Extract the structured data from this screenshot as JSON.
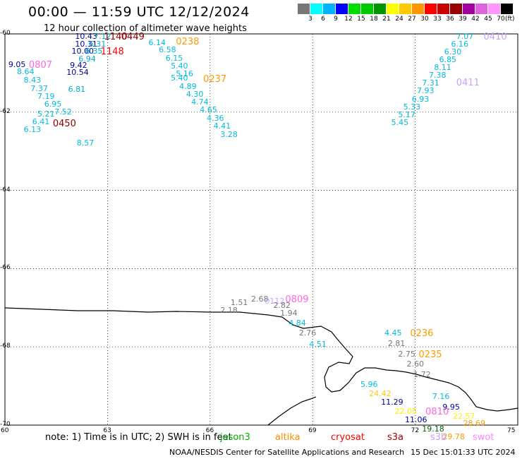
{
  "header": {
    "title": "00:00 — 11:59 UTC 12/12/2024",
    "subtitle": "12 hour collection of altimeter wave heights"
  },
  "legend": {
    "unit": "(ft)",
    "colors": [
      "#777777",
      "#00ffff",
      "#00b4ff",
      "#0000ff",
      "#00dc00",
      "#00c800",
      "#009600",
      "#ffff00",
      "#ffc800",
      "#ff9600",
      "#ff0000",
      "#c80000",
      "#960000",
      "#a000a0",
      "#dc64dc",
      "#ff96ff",
      "#000000"
    ],
    "labels": [
      "3",
      "6",
      "9",
      "12",
      "15",
      "18",
      "21",
      "24",
      "27",
      "30",
      "33",
      "36",
      "39",
      "42",
      "45",
      "70"
    ]
  },
  "axes": {
    "lon_ticks": [
      "60",
      "63",
      "66",
      "69",
      "72",
      "75"
    ],
    "lat_ticks": [
      "-60",
      "-62",
      "-64",
      "-66",
      "-68",
      "-70"
    ],
    "lon_range": [
      60,
      75
    ],
    "lat_range": [
      -60,
      -70
    ]
  },
  "footer": {
    "note": "note: 1) Time is in UTC; 2) SWH is in feet",
    "satellites": [
      {
        "name": "jason3",
        "color": "#00aa00"
      },
      {
        "name": "altika",
        "color": "#ff8c00"
      },
      {
        "name": "cryosat",
        "color": "#ff0000"
      },
      {
        "name": "s3a",
        "color": "#aa0000"
      },
      {
        "name": "s3b",
        "color": "#c8a0ff"
      },
      {
        "name": "swot",
        "color": "#ff88ff"
      }
    ],
    "credit": "NOAA/NESDIS Center for Satellite Applications and Research",
    "timestamp": "15 Dec 15:01:33 UTC 2024"
  },
  "observations": [
    {
      "t": "0449",
      "lon": 63.4,
      "lat": -60.07,
      "c": "#8b0000",
      "tag": true
    },
    {
      "t": "1140",
      "lon": 62.9,
      "lat": -60.07,
      "c": "#aa0000",
      "tag": true
    },
    {
      "t": "1148",
      "lon": 62.8,
      "lat": -60.45,
      "c": "#ff0000",
      "tag": true
    },
    {
      "t": "10.43",
      "lon": 62.05,
      "lat": -60.07,
      "c": "#000099"
    },
    {
      "t": "7.12",
      "lon": 62.6,
      "lat": -60.07,
      "c": "#00aacc"
    },
    {
      "t": "10.31",
      "lon": 62.05,
      "lat": -60.27,
      "c": "#000099"
    },
    {
      "t": "6.31",
      "lon": 62.45,
      "lat": -60.27,
      "c": "#00aacc"
    },
    {
      "t": "10.00",
      "lon": 61.95,
      "lat": -60.45,
      "c": "#000099"
    },
    {
      "t": "6.35",
      "lon": 62.35,
      "lat": -60.45,
      "c": "#00aacc"
    },
    {
      "t": "6.94",
      "lon": 62.15,
      "lat": -60.65,
      "c": "#00aacc"
    },
    {
      "t": "9.42",
      "lon": 61.9,
      "lat": -60.82,
      "c": "#000099"
    },
    {
      "t": "10.54",
      "lon": 61.8,
      "lat": -60.99,
      "c": "#000099"
    },
    {
      "t": "6.81",
      "lon": 61.85,
      "lat": -61.43,
      "c": "#00aacc"
    },
    {
      "t": "0807",
      "lon": 60.7,
      "lat": -60.8,
      "c": "#ff66dd",
      "tag": true
    },
    {
      "t": "9.05",
      "lon": 60.1,
      "lat": -60.8,
      "c": "#000099"
    },
    {
      "t": "8.64",
      "lon": 60.35,
      "lat": -60.98,
      "c": "#00bbdd"
    },
    {
      "t": "8.43",
      "lon": 60.55,
      "lat": -61.2,
      "c": "#00bbdd"
    },
    {
      "t": "7.37",
      "lon": 60.75,
      "lat": -61.4,
      "c": "#00bbdd"
    },
    {
      "t": "7.19",
      "lon": 60.95,
      "lat": -61.6,
      "c": "#00bbdd"
    },
    {
      "t": "6.95",
      "lon": 61.15,
      "lat": -61.8,
      "c": "#00bbdd"
    },
    {
      "t": "7.52",
      "lon": 61.45,
      "lat": -62.0,
      "c": "#00bbdd"
    },
    {
      "t": "5.21",
      "lon": 60.95,
      "lat": -62.05,
      "c": "#00bbdd"
    },
    {
      "t": "6.41",
      "lon": 60.8,
      "lat": -62.25,
      "c": "#00bbdd"
    },
    {
      "t": "6.13",
      "lon": 60.55,
      "lat": -62.45,
      "c": "#00bbdd"
    },
    {
      "t": "0450",
      "lon": 61.4,
      "lat": -62.3,
      "c": "#8b0000",
      "tag": true
    },
    {
      "t": "8.57",
      "lon": 62.1,
      "lat": -62.8,
      "c": "#00bbdd"
    },
    {
      "t": "6.14",
      "lon": 64.2,
      "lat": -60.23,
      "c": "#00bbdd"
    },
    {
      "t": "0238",
      "lon": 65.0,
      "lat": -60.2,
      "c": "#ff9900",
      "tag": true
    },
    {
      "t": "6.58",
      "lon": 64.5,
      "lat": -60.42,
      "c": "#00bbdd"
    },
    {
      "t": "6.15",
      "lon": 64.7,
      "lat": -60.63,
      "c": "#00bbdd"
    },
    {
      "t": "5.40",
      "lon": 64.85,
      "lat": -60.83,
      "c": "#00bbdd"
    },
    {
      "t": "5.16",
      "lon": 65.0,
      "lat": -61.03,
      "c": "#00bbdd"
    },
    {
      "t": "5.40",
      "lon": 64.85,
      "lat": -61.13,
      "c": "#00bbdd"
    },
    {
      "t": "0237",
      "lon": 65.8,
      "lat": -61.15,
      "c": "#ff9900",
      "tag": true
    },
    {
      "t": "4.89",
      "lon": 65.1,
      "lat": -61.35,
      "c": "#00bbdd"
    },
    {
      "t": "4.30",
      "lon": 65.3,
      "lat": -61.55,
      "c": "#00bbdd"
    },
    {
      "t": "4.74",
      "lon": 65.45,
      "lat": -61.75,
      "c": "#00bbdd"
    },
    {
      "t": "4.65",
      "lon": 65.7,
      "lat": -61.95,
      "c": "#00bbdd"
    },
    {
      "t": "4.36",
      "lon": 65.9,
      "lat": -62.16,
      "c": "#00bbdd"
    },
    {
      "t": "4.41",
      "lon": 66.1,
      "lat": -62.37,
      "c": "#00bbdd"
    },
    {
      "t": "3.28",
      "lon": 66.3,
      "lat": -62.58,
      "c": "#00bbdd"
    },
    {
      "t": "7.07",
      "lon": 73.2,
      "lat": -60.07,
      "c": "#00bbdd"
    },
    {
      "t": "0410",
      "lon": 74.0,
      "lat": -60.07,
      "c": "#c8a0ff",
      "tag": true
    },
    {
      "t": "6.16",
      "lon": 73.05,
      "lat": -60.27,
      "c": "#00bbdd"
    },
    {
      "t": "6.30",
      "lon": 72.85,
      "lat": -60.47,
      "c": "#00bbdd"
    },
    {
      "t": "6.85",
      "lon": 72.7,
      "lat": -60.67,
      "c": "#00bbdd"
    },
    {
      "t": "8.11",
      "lon": 72.55,
      "lat": -60.87,
      "c": "#00bbdd"
    },
    {
      "t": "7.38",
      "lon": 72.4,
      "lat": -61.07,
      "c": "#00bbdd"
    },
    {
      "t": "7.31",
      "lon": 72.2,
      "lat": -61.27,
      "c": "#00bbdd"
    },
    {
      "t": "0411",
      "lon": 73.2,
      "lat": -61.25,
      "c": "#c8a0ff",
      "tag": true
    },
    {
      "t": "7.93",
      "lon": 72.05,
      "lat": -61.47,
      "c": "#00bbdd"
    },
    {
      "t": "6.93",
      "lon": 71.9,
      "lat": -61.67,
      "c": "#00bbdd"
    },
    {
      "t": "5.33",
      "lon": 71.65,
      "lat": -61.87,
      "c": "#00bbdd"
    },
    {
      "t": "5.17",
      "lon": 71.5,
      "lat": -62.07,
      "c": "#00bbdd"
    },
    {
      "t": "5.45",
      "lon": 71.3,
      "lat": -62.28,
      "c": "#00bbdd"
    },
    {
      "t": "2.68",
      "lon": 67.2,
      "lat": -66.78,
      "c": "#777777"
    },
    {
      "t": "1.51",
      "lon": 66.6,
      "lat": -66.88,
      "c": "#777777"
    },
    {
      "t": "0809",
      "lon": 68.2,
      "lat": -66.78,
      "c": "#ff66dd",
      "tag": true
    },
    {
      "t": "0112",
      "lon": 67.6,
      "lat": -66.85,
      "c": "#c8a0ff"
    },
    {
      "t": "2.82",
      "lon": 67.85,
      "lat": -66.95,
      "c": "#777777"
    },
    {
      "t": "2.18",
      "lon": 66.3,
      "lat": -67.08,
      "c": "#777777"
    },
    {
      "t": "1.94",
      "lon": 68.05,
      "lat": -67.15,
      "c": "#777777"
    },
    {
      "t": "4.84",
      "lon": 68.3,
      "lat": -67.4,
      "c": "#00bbdd"
    },
    {
      "t": "2.76",
      "lon": 68.6,
      "lat": -67.65,
      "c": "#777777"
    },
    {
      "t": "4.51",
      "lon": 68.9,
      "lat": -67.95,
      "c": "#00bbdd"
    },
    {
      "t": "4.45",
      "lon": 71.1,
      "lat": -67.65,
      "c": "#00bbdd"
    },
    {
      "t": "0236",
      "lon": 71.85,
      "lat": -67.65,
      "c": "#ff9900",
      "tag": true
    },
    {
      "t": "2.81",
      "lon": 71.2,
      "lat": -67.93,
      "c": "#777777"
    },
    {
      "t": "2.75",
      "lon": 71.5,
      "lat": -68.2,
      "c": "#777777"
    },
    {
      "t": "0235",
      "lon": 72.1,
      "lat": -68.2,
      "c": "#ff9900",
      "tag": true
    },
    {
      "t": "2.60",
      "lon": 71.75,
      "lat": -68.45,
      "c": "#777777"
    },
    {
      "t": "1.72",
      "lon": 71.95,
      "lat": -68.72,
      "c": "#777777"
    },
    {
      "t": "5.96",
      "lon": 70.4,
      "lat": -68.98,
      "c": "#00bbdd"
    },
    {
      "t": "24.42",
      "lon": 70.65,
      "lat": -69.2,
      "c": "#ffcc00"
    },
    {
      "t": "7.16",
      "lon": 72.5,
      "lat": -69.27,
      "c": "#00bbdd"
    },
    {
      "t": "11.29",
      "lon": 71.0,
      "lat": -69.43,
      "c": "#000099"
    },
    {
      "t": "9.95",
      "lon": 72.8,
      "lat": -69.55,
      "c": "#000099"
    },
    {
      "t": "22.05",
      "lon": 71.4,
      "lat": -69.65,
      "c": "#ffee00"
    },
    {
      "t": "0810",
      "lon": 72.3,
      "lat": -69.65,
      "c": "#ff66dd",
      "tag": true
    },
    {
      "t": "22.57",
      "lon": 73.1,
      "lat": -69.78,
      "c": "#ffee00"
    },
    {
      "t": "11.06",
      "lon": 71.7,
      "lat": -69.87,
      "c": "#000099"
    },
    {
      "t": "28.69",
      "lon": 73.4,
      "lat": -69.97,
      "c": "#ff9900"
    },
    {
      "t": "19.18",
      "lon": 72.2,
      "lat": -70.1,
      "c": "#006600"
    },
    {
      "t": "29.78",
      "lon": 72.8,
      "lat": -70.3,
      "c": "#ff9900"
    }
  ]
}
